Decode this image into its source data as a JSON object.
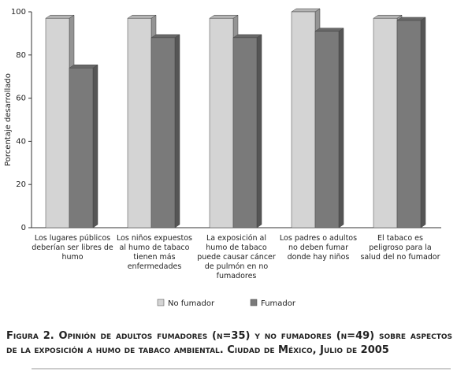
{
  "chart_data": {
    "type": "bar",
    "y_label": "Porcentaje desarrollado",
    "categories": [
      "Los lugares públicos deberían ser libres de humo",
      "Los niños expuestos al humo de tabaco tienen más enfermedades",
      "La exposición al humo de tabaco puede causar cáncer de pulmón en no fumadores",
      "Los padres o adultos no deben fumar donde hay niños",
      "El tabaco es peligroso para la salud del no fumador"
    ],
    "series": [
      {
        "name": "No fumador",
        "color": "#d4d4d4",
        "values": [
          97,
          97,
          97,
          100,
          97
        ]
      },
      {
        "name": "Fumador",
        "color": "#7a7a7a",
        "values": [
          74,
          88,
          88,
          91,
          96
        ]
      }
    ],
    "ylim": [
      0,
      100
    ],
    "yticks": [
      0,
      20,
      40,
      60,
      80,
      100
    ],
    "caption": "Figura 2. Opinión de adultos fumadores (n=35) y no fumadores (n=49) sobre aspectos de la exposición a humo de tabaco ambiental. Ciudad de México, Julio de 2005"
  }
}
